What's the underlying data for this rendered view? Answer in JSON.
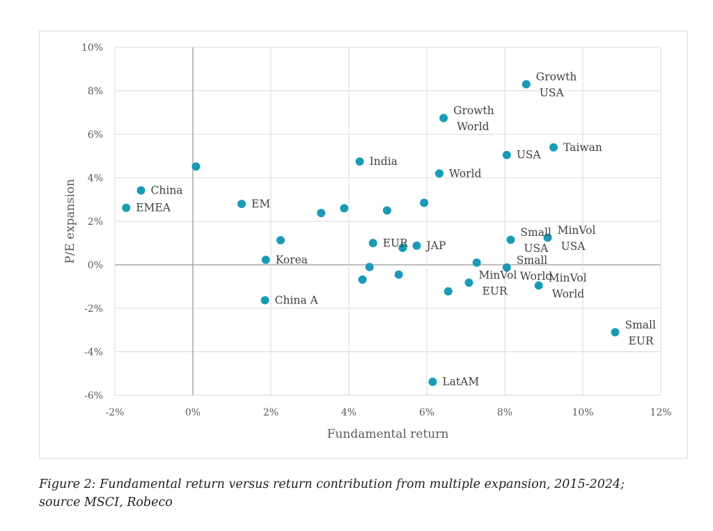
{
  "chart_data": {
    "type": "scatter",
    "title": "",
    "xlabel": "Fundamental return",
    "ylabel": "P/E expansion",
    "xlim": [
      -0.02,
      0.12
    ],
    "ylim": [
      -0.06,
      0.1
    ],
    "x_ticks": [
      {
        "value": -0.02,
        "label": "-2%"
      },
      {
        "value": 0.0,
        "label": "0%"
      },
      {
        "value": 0.02,
        "label": "2%"
      },
      {
        "value": 0.04,
        "label": "4%"
      },
      {
        "value": 0.06,
        "label": "6%"
      },
      {
        "value": 0.08,
        "label": "8%"
      },
      {
        "value": 0.1,
        "label": "10%"
      },
      {
        "value": 0.12,
        "label": "12%"
      }
    ],
    "y_ticks": [
      {
        "value": -0.06,
        "label": "-6%"
      },
      {
        "value": -0.04,
        "label": "-4%"
      },
      {
        "value": -0.02,
        "label": "-2%"
      },
      {
        "value": 0.0,
        "label": "0%"
      },
      {
        "value": 0.02,
        "label": "2%"
      },
      {
        "value": 0.04,
        "label": "4%"
      },
      {
        "value": 0.06,
        "label": "6%"
      },
      {
        "value": 0.08,
        "label": "8%"
      },
      {
        "value": 0.1,
        "label": "10%"
      }
    ],
    "grid": true,
    "marker_color": "#1a9bb5",
    "points": [
      {
        "x": 0.0855,
        "y": 0.083,
        "label": [
          "Growth",
          "USA"
        ],
        "side": "right"
      },
      {
        "x": 0.0643,
        "y": 0.0675,
        "label": [
          "Growth",
          "World"
        ],
        "side": "right"
      },
      {
        "x": 0.0925,
        "y": 0.054,
        "label": [
          "Taiwan"
        ],
        "side": "right"
      },
      {
        "x": 0.0805,
        "y": 0.0505,
        "label": [
          "USA"
        ],
        "side": "right"
      },
      {
        "x": 0.0428,
        "y": 0.0475,
        "label": [
          "India"
        ],
        "side": "right"
      },
      {
        "x": 0.0008,
        "y": 0.0452,
        "label": [],
        "side": "right"
      },
      {
        "x": 0.0632,
        "y": 0.042,
        "label": [
          "World"
        ],
        "side": "right"
      },
      {
        "x": -0.0133,
        "y": 0.0342,
        "label": [
          "China"
        ],
        "side": "right"
      },
      {
        "x": 0.0593,
        "y": 0.0285,
        "label": [],
        "side": "right"
      },
      {
        "x": 0.0125,
        "y": 0.028,
        "label": [
          "EM"
        ],
        "side": "right"
      },
      {
        "x": -0.0171,
        "y": 0.0262,
        "label": [
          "EMEA"
        ],
        "side": "right"
      },
      {
        "x": 0.0388,
        "y": 0.026,
        "label": [],
        "side": "right"
      },
      {
        "x": 0.0498,
        "y": 0.025,
        "label": [],
        "side": "right"
      },
      {
        "x": 0.0329,
        "y": 0.0238,
        "label": [],
        "side": "right"
      },
      {
        "x": 0.091,
        "y": 0.0125,
        "label": [
          "MinVol",
          "USA"
        ],
        "side": "right"
      },
      {
        "x": 0.0815,
        "y": 0.0115,
        "label": [
          "Small",
          "USA"
        ],
        "side": "right"
      },
      {
        "x": 0.0225,
        "y": 0.0113,
        "label": [],
        "side": "right"
      },
      {
        "x": 0.0462,
        "y": 0.01,
        "label": [
          "EUR"
        ],
        "side": "right"
      },
      {
        "x": 0.0574,
        "y": 0.0088,
        "label": [
          "JAP"
        ],
        "side": "right"
      },
      {
        "x": 0.0538,
        "y": 0.0078,
        "label": [],
        "side": "right"
      },
      {
        "x": 0.0187,
        "y": 0.0023,
        "label": [
          "Korea"
        ],
        "side": "right"
      },
      {
        "x": 0.0728,
        "y": 0.001,
        "label": [],
        "side": "right"
      },
      {
        "x": 0.0453,
        "y": -0.001,
        "label": [],
        "side": "right"
      },
      {
        "x": 0.0805,
        "y": -0.0012,
        "label": [
          "Small",
          "World"
        ],
        "side": "right"
      },
      {
        "x": 0.0528,
        "y": -0.0045,
        "label": [],
        "side": "right"
      },
      {
        "x": 0.0435,
        "y": -0.0068,
        "label": [],
        "side": "right"
      },
      {
        "x": 0.0708,
        "y": -0.0082,
        "label": [
          "MinVol",
          "EUR"
        ],
        "side": "right"
      },
      {
        "x": 0.0887,
        "y": -0.0095,
        "label": [
          "MinVol",
          "World"
        ],
        "side": "right"
      },
      {
        "x": 0.0655,
        "y": -0.0122,
        "label": [],
        "side": "right"
      },
      {
        "x": 0.0185,
        "y": -0.0163,
        "label": [
          "China A"
        ],
        "side": "right"
      },
      {
        "x": 0.1083,
        "y": -0.031,
        "label": [
          "Small",
          "EUR"
        ],
        "side": "right"
      },
      {
        "x": 0.0615,
        "y": -0.0538,
        "label": [
          "LatAM"
        ],
        "side": "right"
      }
    ]
  },
  "caption": {
    "line1": "Figure 2: Fundamental return versus return contribution from multiple expansion, 2015-2024;",
    "line2": "source MSCI, Robeco"
  }
}
